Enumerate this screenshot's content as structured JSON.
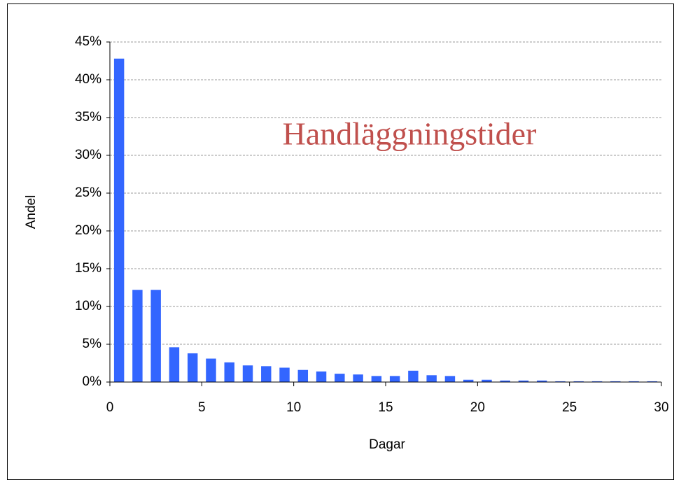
{
  "chart_data": {
    "type": "bar",
    "title": "Handläggningstider",
    "x_label": "Dagar",
    "y_label": "Andel",
    "x": [
      0.5,
      1.5,
      2.5,
      3.5,
      4.5,
      5.5,
      6.5,
      7.5,
      8.5,
      9.5,
      10.5,
      11.5,
      12.5,
      13.5,
      14.5,
      15.5,
      16.5,
      17.5,
      18.5,
      19.5,
      20.5,
      21.5,
      22.5,
      23.5,
      24.5,
      25.5,
      26.5,
      27.5,
      28.5,
      29.5
    ],
    "values": [
      42.8,
      12.2,
      12.2,
      4.6,
      3.8,
      3.1,
      2.6,
      2.2,
      2.1,
      1.9,
      1.6,
      1.4,
      1.1,
      1.0,
      0.8,
      0.8,
      1.5,
      0.9,
      0.8,
      0.3,
      0.3,
      0.2,
      0.2,
      0.2,
      0.1,
      0.1,
      0.1,
      0.1,
      0.1,
      0.1
    ],
    "color": "#3366ff",
    "xlim": [
      0,
      30
    ],
    "xticks": [
      0,
      5,
      10,
      15,
      20,
      25,
      30
    ],
    "ylim": [
      0,
      45
    ],
    "yticks": [
      {
        "value": 0,
        "label": "0%"
      },
      {
        "value": 5,
        "label": "5%"
      },
      {
        "value": 10,
        "label": "10%"
      },
      {
        "value": 15,
        "label": "15%"
      },
      {
        "value": 20,
        "label": "20%"
      },
      {
        "value": 25,
        "label": "25%"
      },
      {
        "value": 30,
        "label": "30%"
      },
      {
        "value": 35,
        "label": "35%"
      },
      {
        "value": 40,
        "label": "40%"
      },
      {
        "value": 45,
        "label": "45%"
      }
    ],
    "grid": true
  }
}
